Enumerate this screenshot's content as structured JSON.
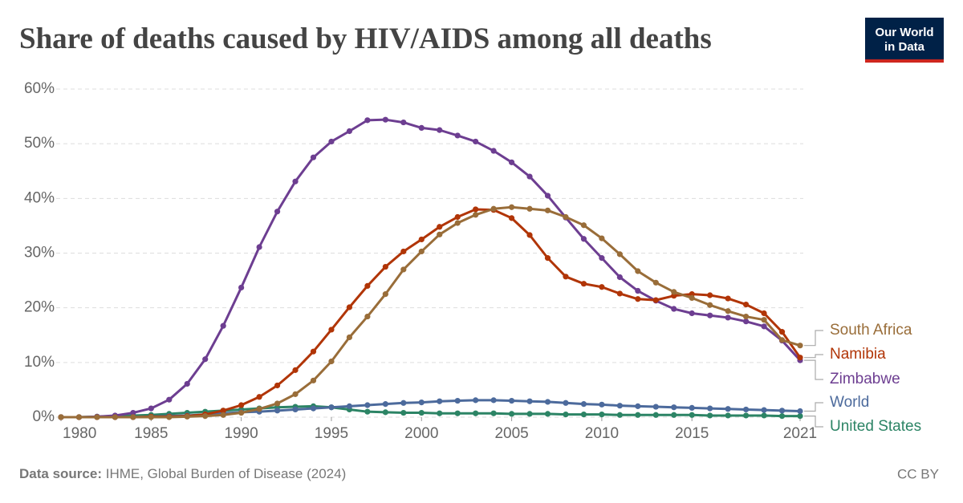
{
  "chart_data": {
    "type": "line",
    "title": "Share of deaths caused by HIV/AIDS among all deaths",
    "logo": [
      "Our World",
      "in Data"
    ],
    "source_label": "Data source:",
    "source": "IHME, Global Burden of Disease (2024)",
    "license": "CC BY",
    "x": [
      1980,
      1981,
      1982,
      1983,
      1984,
      1985,
      1986,
      1987,
      1988,
      1989,
      1990,
      1991,
      1992,
      1993,
      1994,
      1995,
      1996,
      1997,
      1998,
      1999,
      2000,
      2001,
      2002,
      2003,
      2004,
      2005,
      2006,
      2007,
      2008,
      2009,
      2010,
      2011,
      2012,
      2013,
      2014,
      2015,
      2016,
      2017,
      2018,
      2019,
      2020,
      2021
    ],
    "xlim": [
      1980,
      2021
    ],
    "xticks": [
      1980,
      1985,
      1990,
      1995,
      2000,
      2005,
      2010,
      2015,
      2021
    ],
    "ylim": [
      0,
      60
    ],
    "yticks": [
      {
        "value": 0,
        "label": "0%"
      },
      {
        "value": 10,
        "label": "10%"
      },
      {
        "value": 20,
        "label": "20%"
      },
      {
        "value": 30,
        "label": "30%"
      },
      {
        "value": 40,
        "label": "40%"
      },
      {
        "value": 50,
        "label": "50%"
      },
      {
        "value": 60,
        "label": "60%"
      }
    ],
    "grid": true,
    "series": [
      {
        "name": "South Africa",
        "color": "#996d39",
        "values": [
          0,
          0,
          0,
          0,
          0,
          0,
          0,
          0.1,
          0.2,
          0.4,
          0.8,
          1.5,
          2.5,
          4.2,
          6.7,
          10.2,
          14.6,
          18.4,
          22.5,
          27.0,
          30.3,
          33.4,
          35.5,
          37.0,
          38.1,
          38.4,
          38.1,
          37.8,
          36.6,
          35.1,
          32.7,
          29.8,
          26.7,
          24.6,
          22.9,
          21.8,
          20.5,
          19.4,
          18.4,
          17.8,
          14.1,
          13.1
        ]
      },
      {
        "name": "Namibia",
        "color": "#b13507",
        "values": [
          0,
          0,
          0,
          0,
          0,
          0.1,
          0.1,
          0.2,
          0.5,
          1.2,
          2.2,
          3.7,
          5.8,
          8.6,
          12.0,
          16.0,
          20.1,
          24.0,
          27.5,
          30.3,
          32.5,
          34.8,
          36.6,
          38.0,
          37.9,
          36.4,
          33.3,
          29.1,
          25.7,
          24.4,
          23.8,
          22.6,
          21.6,
          21.4,
          22.2,
          22.5,
          22.3,
          21.7,
          20.6,
          19.0,
          15.6,
          10.9
        ]
      },
      {
        "name": "Zimbabwe",
        "color": "#6d3e91",
        "values": [
          0,
          0,
          0.1,
          0.3,
          0.8,
          1.6,
          3.2,
          6.1,
          10.6,
          16.7,
          23.7,
          31.1,
          37.6,
          43.1,
          47.5,
          50.4,
          52.3,
          54.3,
          54.4,
          53.9,
          52.9,
          52.5,
          51.5,
          50.4,
          48.7,
          46.6,
          44.0,
          40.5,
          36.5,
          32.6,
          29.1,
          25.6,
          23.1,
          21.3,
          19.8,
          19.0,
          18.6,
          18.2,
          17.5,
          16.6,
          14.0,
          10.4
        ]
      },
      {
        "name": "World",
        "color": "#4c6a9c",
        "values": [
          0,
          0,
          0,
          0,
          0,
          0.1,
          0.2,
          0.3,
          0.5,
          0.7,
          0.9,
          1.0,
          1.2,
          1.4,
          1.6,
          1.8,
          2.0,
          2.2,
          2.4,
          2.6,
          2.7,
          2.9,
          3.0,
          3.1,
          3.1,
          3.0,
          2.9,
          2.8,
          2.6,
          2.4,
          2.3,
          2.1,
          2.0,
          1.9,
          1.8,
          1.7,
          1.6,
          1.5,
          1.4,
          1.3,
          1.2,
          1.1
        ]
      },
      {
        "name": "United States",
        "color": "#2c8465",
        "values": [
          0,
          0,
          0.1,
          0.2,
          0.3,
          0.4,
          0.6,
          0.8,
          1.0,
          1.2,
          1.4,
          1.6,
          1.8,
          1.9,
          2.0,
          1.8,
          1.4,
          1.0,
          0.9,
          0.8,
          0.8,
          0.7,
          0.7,
          0.7,
          0.7,
          0.6,
          0.6,
          0.6,
          0.5,
          0.5,
          0.5,
          0.4,
          0.4,
          0.4,
          0.4,
          0.4,
          0.3,
          0.3,
          0.3,
          0.3,
          0.2,
          0.2
        ]
      }
    ]
  }
}
